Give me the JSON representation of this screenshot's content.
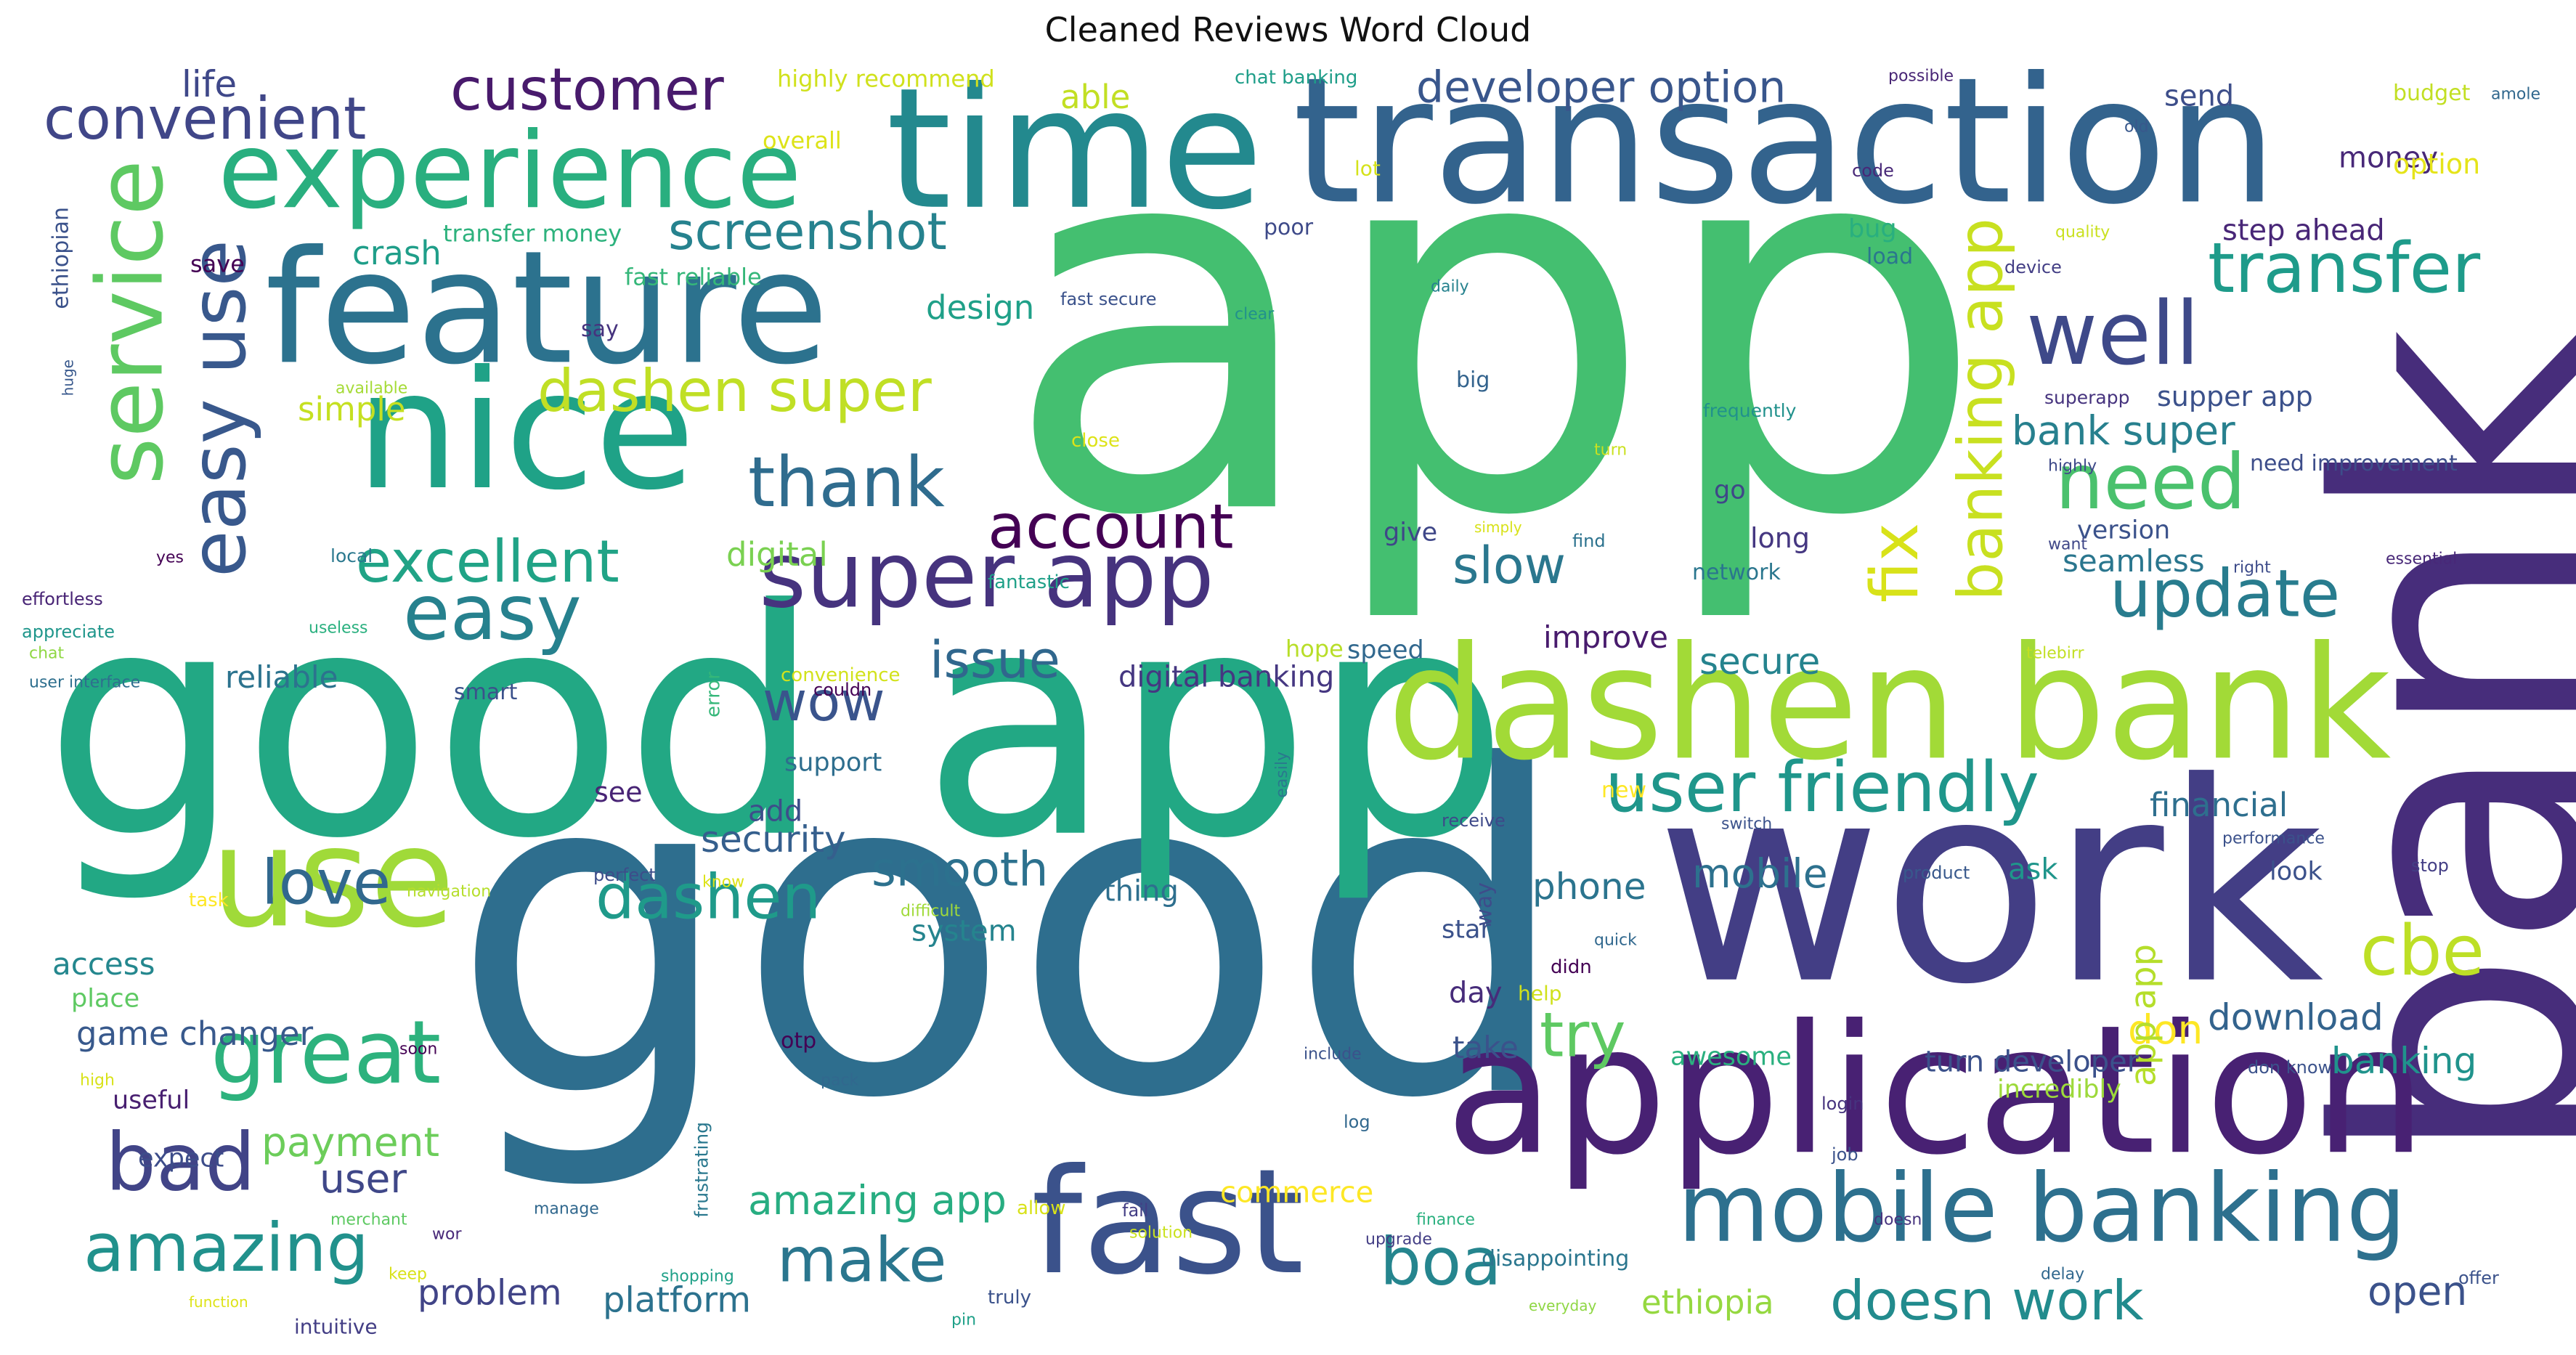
{
  "title": "Cleaned Reviews Word Cloud",
  "palette": "viridis",
  "words": [
    {
      "text": "app",
      "color": "#44bf70"
    },
    {
      "text": "good",
      "color": "#2e6e8e"
    },
    {
      "text": "good app",
      "color": "#22a884"
    },
    {
      "text": "bank",
      "color": "#472d7b"
    },
    {
      "text": "work",
      "color": "#433e85"
    },
    {
      "text": "transaction",
      "color": "#33638d"
    },
    {
      "text": "time",
      "color": "#23898e"
    },
    {
      "text": "application",
      "color": "#482173"
    },
    {
      "text": "dashen bank",
      "color": "#a2da37"
    },
    {
      "text": "feature",
      "color": "#2c728e"
    },
    {
      "text": "nice",
      "color": "#1fa287"
    },
    {
      "text": "fast",
      "color": "#3b528b"
    },
    {
      "text": "use",
      "color": "#a0da39"
    },
    {
      "text": "mobile banking",
      "color": "#2d708e"
    },
    {
      "text": "experience",
      "color": "#29af7f"
    },
    {
      "text": "super app",
      "color": "#46337e"
    },
    {
      "text": "great",
      "color": "#2db27d"
    },
    {
      "text": "well",
      "color": "#3e4989"
    },
    {
      "text": "service",
      "color": "#5ec962"
    },
    {
      "text": "easy use",
      "color": "#38588c"
    },
    {
      "text": "amazing",
      "color": "#21918c"
    },
    {
      "text": "bad",
      "color": "#414487"
    },
    {
      "text": "user friendly",
      "color": "#1f968b"
    },
    {
      "text": "transfer",
      "color": "#1e9b8a"
    },
    {
      "text": "banking app",
      "color": "#c8e020"
    },
    {
      "text": "need",
      "color": "#4ac16d"
    },
    {
      "text": "update",
      "color": "#287c8e"
    },
    {
      "text": "dashen super",
      "color": "#c0df25"
    },
    {
      "text": "thank",
      "color": "#2f6c8e"
    },
    {
      "text": "account",
      "color": "#440154"
    },
    {
      "text": "easy",
      "color": "#26818e"
    },
    {
      "text": "excellent",
      "color": "#20a386"
    },
    {
      "text": "convenient",
      "color": "#404688"
    },
    {
      "text": "customer",
      "color": "#481a6c"
    },
    {
      "text": "cbe",
      "color": "#bddf26"
    },
    {
      "text": "boa",
      "color": "#25858e"
    },
    {
      "text": "dashen",
      "color": "#1f9a8a"
    },
    {
      "text": "love",
      "color": "#31688e"
    },
    {
      "text": "fix",
      "color": "#d8e219"
    },
    {
      "text": "screenshot",
      "color": "#26828e"
    },
    {
      "text": "doesn work",
      "color": "#228b8d"
    },
    {
      "text": "wow",
      "color": "#3a548c"
    },
    {
      "text": "make",
      "color": "#2a768e"
    },
    {
      "text": "try",
      "color": "#5ec962"
    },
    {
      "text": "slow",
      "color": "#2a778e"
    },
    {
      "text": "developer option",
      "color": "#39568c"
    },
    {
      "text": "issue",
      "color": "#30678d"
    },
    {
      "text": "smooth",
      "color": "#2c718e"
    },
    {
      "text": "bank super",
      "color": "#27808e"
    },
    {
      "text": "secure",
      "color": "#25838e"
    },
    {
      "text": "payment",
      "color": "#6ccd5a"
    },
    {
      "text": "amazing app",
      "color": "#27ad81"
    },
    {
      "text": "user",
      "color": "#3f4788"
    },
    {
      "text": "mobile",
      "color": "#2d718e"
    },
    {
      "text": "phone",
      "color": "#2b748e"
    },
    {
      "text": "download",
      "color": "#33638d"
    },
    {
      "text": "problem",
      "color": "#414487"
    },
    {
      "text": "platform",
      "color": "#2c728e"
    },
    {
      "text": "ethiopia",
      "color": "#95d840"
    },
    {
      "text": "open",
      "color": "#3b528b"
    },
    {
      "text": "game changer",
      "color": "#38598c"
    },
    {
      "text": "security",
      "color": "#355f8d"
    },
    {
      "text": "don",
      "color": "#fde725"
    },
    {
      "text": "digital banking",
      "color": "#453781"
    },
    {
      "text": "banking",
      "color": "#20938c"
    },
    {
      "text": "digital",
      "color": "#7ad151"
    },
    {
      "text": "app app",
      "color": "#b5de2b"
    },
    {
      "text": "financial",
      "color": "#2e6f8e"
    },
    {
      "text": "life",
      "color": "#3f4889"
    },
    {
      "text": "money",
      "color": "#482878"
    },
    {
      "text": "send",
      "color": "#3d4e8a"
    },
    {
      "text": "able",
      "color": "#c2df23"
    },
    {
      "text": "crash",
      "color": "#1f9e89"
    },
    {
      "text": "design",
      "color": "#1fa088"
    },
    {
      "text": "simple",
      "color": "#c5e021"
    },
    {
      "text": "step ahead",
      "color": "#482677"
    },
    {
      "text": "supper app",
      "color": "#3b518b"
    },
    {
      "text": "improve",
      "color": "#481b6d"
    },
    {
      "text": "reliable",
      "color": "#2c738e"
    },
    {
      "text": "seamless",
      "color": "#2a768e"
    },
    {
      "text": "access",
      "color": "#24878e"
    },
    {
      "text": "add",
      "color": "#3d4e8a"
    },
    {
      "text": "system",
      "color": "#25848e"
    },
    {
      "text": "thing",
      "color": "#2e6f8e"
    },
    {
      "text": "ask",
      "color": "#1f958b"
    },
    {
      "text": "look",
      "color": "#3b518b"
    },
    {
      "text": "incredibly",
      "color": "#9dd93b"
    },
    {
      "text": "place",
      "color": "#5ec962"
    },
    {
      "text": "useful",
      "color": "#481f70"
    },
    {
      "text": "support",
      "color": "#2e6e8e"
    },
    {
      "text": "see",
      "color": "#482475"
    },
    {
      "text": "commerce",
      "color": "#fde725"
    },
    {
      "text": "take",
      "color": "#3b528b"
    },
    {
      "text": "day",
      "color": "#472c7a"
    },
    {
      "text": "turn developer",
      "color": "#3b518b"
    },
    {
      "text": "awesome",
      "color": "#2ab07f"
    },
    {
      "text": "go",
      "color": "#3f4788"
    },
    {
      "text": "long",
      "color": "#453781"
    },
    {
      "text": "version",
      "color": "#3b528b"
    },
    {
      "text": "give",
      "color": "#3f4788"
    },
    {
      "text": "speed",
      "color": "#31688e"
    },
    {
      "text": "hope",
      "color": "#b8de29"
    },
    {
      "text": "star",
      "color": "#3b528b"
    },
    {
      "text": "way",
      "color": "#3e4c8a"
    },
    {
      "text": "expect",
      "color": "#3d4d8a"
    },
    {
      "text": "highly recommend",
      "color": "#d0e11c"
    },
    {
      "text": "overall",
      "color": "#dde318"
    },
    {
      "text": "transfer money",
      "color": "#2db27d"
    },
    {
      "text": "save",
      "color": "#440154"
    },
    {
      "text": "fast reliable",
      "color": "#35b779"
    },
    {
      "text": "ethiopian",
      "color": "#3b528b"
    },
    {
      "text": "chat banking",
      "color": "#1f9e89"
    },
    {
      "text": "lot",
      "color": "#d5e21a"
    },
    {
      "text": "code",
      "color": "#482878"
    },
    {
      "text": "possible",
      "color": "#482575"
    },
    {
      "text": "budget",
      "color": "#c2df23"
    },
    {
      "text": "amole",
      "color": "#31688e"
    },
    {
      "text": "option",
      "color": "#e5e419"
    },
    {
      "text": "old",
      "color": "#38588c"
    },
    {
      "text": "bug",
      "color": "#29af7f"
    },
    {
      "text": "load",
      "color": "#2a768e"
    },
    {
      "text": "poor",
      "color": "#3e4a89"
    },
    {
      "text": "quality",
      "color": "#cae11f"
    },
    {
      "text": "device",
      "color": "#433e85"
    },
    {
      "text": "fast secure",
      "color": "#3b528b"
    },
    {
      "text": "clear",
      "color": "#21918c"
    },
    {
      "text": "daily",
      "color": "#26828e"
    },
    {
      "text": "say",
      "color": "#46337e"
    },
    {
      "text": "available",
      "color": "#a5db36"
    },
    {
      "text": "big",
      "color": "#33638d"
    },
    {
      "text": "frequently",
      "color": "#21918c"
    },
    {
      "text": "superapp",
      "color": "#46337e"
    },
    {
      "text": "close",
      "color": "#dde318"
    },
    {
      "text": "turn",
      "color": "#cae11f"
    },
    {
      "text": "highly",
      "color": "#3e4989"
    },
    {
      "text": "need improvement",
      "color": "#3d4d8a"
    },
    {
      "text": "huge",
      "color": "#38588c"
    },
    {
      "text": "simply",
      "color": "#d8e219"
    },
    {
      "text": "find",
      "color": "#2c728e"
    },
    {
      "text": "want",
      "color": "#3f4788"
    },
    {
      "text": "local",
      "color": "#2a788e"
    },
    {
      "text": "yes",
      "color": "#440154"
    },
    {
      "text": "fantastic",
      "color": "#1fa088"
    },
    {
      "text": "right",
      "color": "#3e4c8a"
    },
    {
      "text": "essential",
      "color": "#482878"
    },
    {
      "text": "effortless",
      "color": "#482475"
    },
    {
      "text": "network",
      "color": "#2a768e"
    },
    {
      "text": "appreciate",
      "color": "#1f968b"
    },
    {
      "text": "useless",
      "color": "#2ab07f"
    },
    {
      "text": "chat",
      "color": "#8fd744"
    },
    {
      "text": "telebirr",
      "color": "#c2df23"
    },
    {
      "text": "user interface",
      "color": "#2e6f8e"
    },
    {
      "text": "convenience",
      "color": "#d2e21b"
    },
    {
      "text": "error",
      "color": "#35b779"
    },
    {
      "text": "smart",
      "color": "#3b518b"
    },
    {
      "text": "couldn",
      "color": "#440154"
    },
    {
      "text": "easily",
      "color": "#2a788e"
    },
    {
      "text": "new",
      "color": "#fde725"
    },
    {
      "text": "receive",
      "color": "#3e4989"
    },
    {
      "text": "switch",
      "color": "#3b528b"
    },
    {
      "text": "performance",
      "color": "#3b518b"
    },
    {
      "text": "know",
      "color": "#dde318"
    },
    {
      "text": "perfect",
      "color": "#3d4d8a"
    },
    {
      "text": "navigation",
      "color": "#b5de2b"
    },
    {
      "text": "task",
      "color": "#fde725"
    },
    {
      "text": "difficult",
      "color": "#a0da39"
    },
    {
      "text": "product",
      "color": "#38588c"
    },
    {
      "text": "stop",
      "color": "#433e85"
    },
    {
      "text": "quick",
      "color": "#31688e"
    },
    {
      "text": "didn",
      "color": "#440154"
    },
    {
      "text": "help",
      "color": "#d0e11c"
    },
    {
      "text": "soon",
      "color": "#440154"
    },
    {
      "text": "include",
      "color": "#3b528b"
    },
    {
      "text": "otp",
      "color": "#440154"
    },
    {
      "text": "pack",
      "color": "#31688e"
    },
    {
      "text": "high",
      "color": "#d8e219"
    },
    {
      "text": "don know",
      "color": "#3b528b"
    },
    {
      "text": "login",
      "color": "#46337e"
    },
    {
      "text": "log",
      "color": "#31688e"
    },
    {
      "text": "job",
      "color": "#3b528b"
    },
    {
      "text": "manage",
      "color": "#31688e"
    },
    {
      "text": "frustrating",
      "color": "#2a788e"
    },
    {
      "text": "allow",
      "color": "#d8e219"
    },
    {
      "text": "fail",
      "color": "#433e85"
    },
    {
      "text": "finance",
      "color": "#2ab07f"
    },
    {
      "text": "upgrade",
      "color": "#433e85"
    },
    {
      "text": "solution",
      "color": "#cae11f"
    },
    {
      "text": "doesn",
      "color": "#46337e"
    },
    {
      "text": "merchant",
      "color": "#5ec962"
    },
    {
      "text": "wor",
      "color": "#482878"
    },
    {
      "text": "keep",
      "color": "#d8e219"
    },
    {
      "text": "shopping",
      "color": "#1fa088"
    },
    {
      "text": "disappointing",
      "color": "#2a768e"
    },
    {
      "text": "delay",
      "color": "#31688e"
    },
    {
      "text": "function",
      "color": "#dde318"
    },
    {
      "text": "truly",
      "color": "#3b528b"
    },
    {
      "text": "pin",
      "color": "#1fa088"
    },
    {
      "text": "everyday",
      "color": "#8fd744"
    },
    {
      "text": "offer",
      "color": "#3b528b"
    },
    {
      "text": "intuitive",
      "color": "#433e85"
    }
  ]
}
